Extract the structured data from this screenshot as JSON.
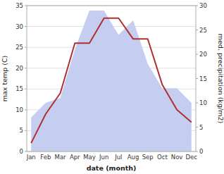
{
  "chart_data": {
    "type": "line",
    "categories": [
      "Jan",
      "Feb",
      "Mar",
      "Apr",
      "May",
      "Jun",
      "Jul",
      "Aug",
      "Sep",
      "Oct",
      "Nov",
      "Dec"
    ],
    "series": [
      {
        "type": "area",
        "color": "#c5cef0",
        "axis": "y2",
        "values": [
          7,
          10,
          11,
          21,
          29,
          29,
          24,
          27,
          18,
          13,
          13,
          10
        ]
      },
      {
        "type": "line",
        "color": "#b03030",
        "values": [
          2,
          9,
          14,
          26,
          26,
          32,
          32,
          27,
          27,
          16,
          10,
          7
        ]
      }
    ],
    "xlabel": "date (month)",
    "ylabel": "max temp (C)",
    "y2label": "med. precipitation (kg/m2)",
    "ylim": [
      0,
      35
    ],
    "yticks": [
      0,
      5,
      10,
      15,
      20,
      25,
      30,
      35
    ],
    "y2lim": [
      0,
      30
    ],
    "y2ticks": [
      0,
      5,
      10,
      15,
      20,
      25,
      30
    ],
    "grid": true
  }
}
